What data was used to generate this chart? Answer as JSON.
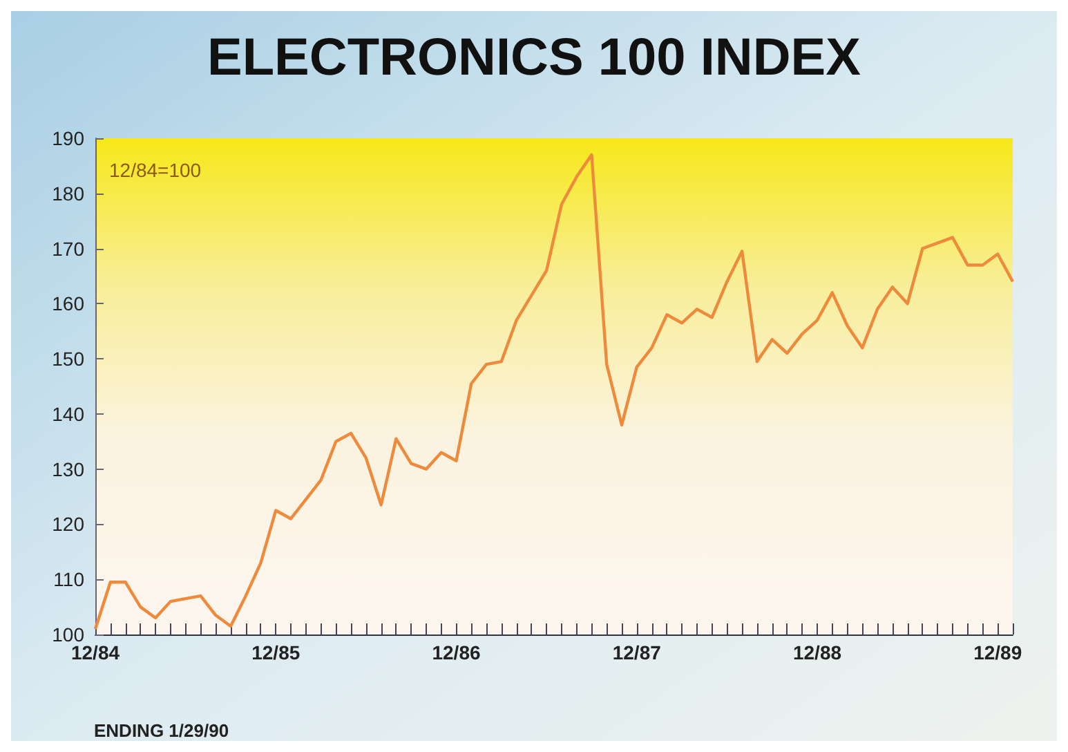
{
  "chart_data": {
    "type": "line",
    "title": "ELECTRONICS 100 INDEX",
    "categories": [
      "12/84",
      null,
      null,
      null,
      null,
      null,
      null,
      null,
      null,
      null,
      null,
      null,
      "12/85",
      null,
      null,
      null,
      null,
      null,
      null,
      null,
      null,
      null,
      null,
      null,
      "12/86",
      null,
      null,
      null,
      null,
      null,
      null,
      null,
      null,
      null,
      null,
      null,
      "12/87",
      null,
      null,
      null,
      null,
      null,
      null,
      null,
      null,
      null,
      null,
      null,
      "12/88",
      null,
      null,
      null,
      null,
      null,
      null,
      null,
      null,
      null,
      null,
      null,
      "12/89",
      null
    ],
    "values": [
      101,
      109.5,
      109.5,
      105,
      103,
      106,
      106.5,
      107,
      103.5,
      101.5,
      107,
      113,
      122.5,
      121,
      124.5,
      128,
      135,
      136.5,
      132,
      123.5,
      135.5,
      131,
      130,
      133,
      131.5,
      145.5,
      149,
      149.5,
      157,
      161.5,
      166,
      178,
      183,
      187,
      149,
      138,
      148.5,
      152,
      158,
      156.5,
      159,
      157.5,
      164,
      169.5,
      149.5,
      153.5,
      151,
      154.5,
      157,
      162,
      156,
      152,
      159,
      163,
      160,
      170,
      171,
      172,
      167,
      167,
      169,
      164
    ],
    "color": "#ee8a3c",
    "ylim": [
      100,
      190
    ],
    "yticks": [
      100,
      110,
      120,
      130,
      140,
      150,
      160,
      170,
      180,
      190
    ],
    "annotations": [
      "12/84=100",
      "ENDING 1/29/90"
    ]
  }
}
